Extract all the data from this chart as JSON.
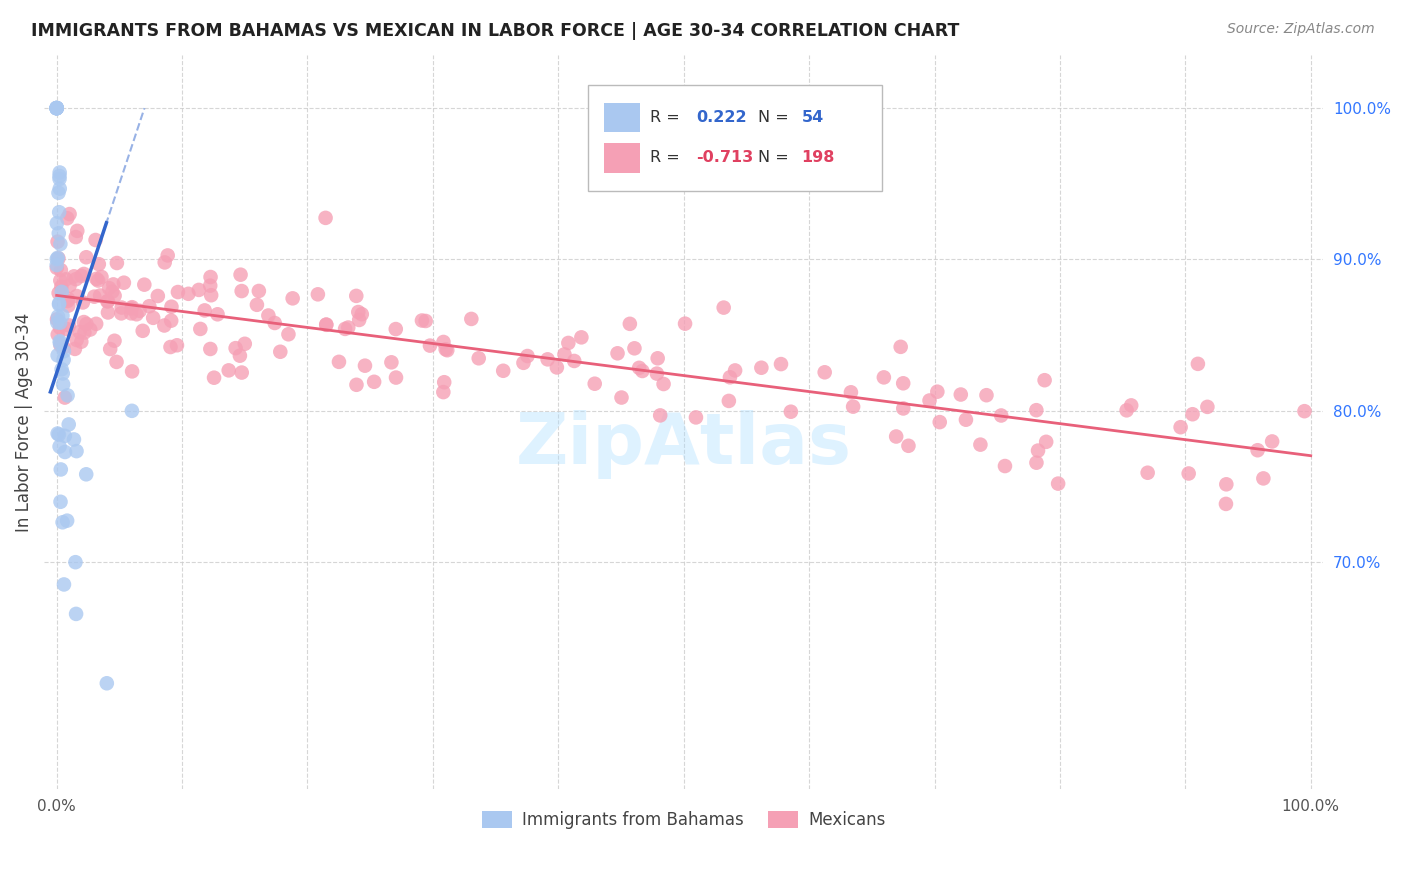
{
  "title": "IMMIGRANTS FROM BAHAMAS VS MEXICAN IN LABOR FORCE | AGE 30-34 CORRELATION CHART",
  "source": "Source: ZipAtlas.com",
  "ylabel": "In Labor Force | Age 30-34",
  "xlim": [
    -0.01,
    1.01
  ],
  "ylim": [
    0.55,
    1.035
  ],
  "y_ticks_right": [
    0.7,
    0.8,
    0.9,
    1.0
  ],
  "y_tick_labels_right": [
    "70.0%",
    "80.0%",
    "90.0%",
    "100.0%"
  ],
  "background_color": "#ffffff",
  "grid_color": "#cccccc",
  "bahamas_color": "#aac8f0",
  "mexican_color": "#f5a0b5",
  "bahamas_line_color": "#3366cc",
  "mexican_line_color": "#e8607a",
  "R_bahamas": 0.222,
  "N_bahamas": 54,
  "R_mexican": -0.713,
  "N_mexican": 198,
  "legend_label_bahamas": "Immigrants from Bahamas",
  "legend_label_mexican": "Mexicans",
  "watermark": "ZipAtlas"
}
